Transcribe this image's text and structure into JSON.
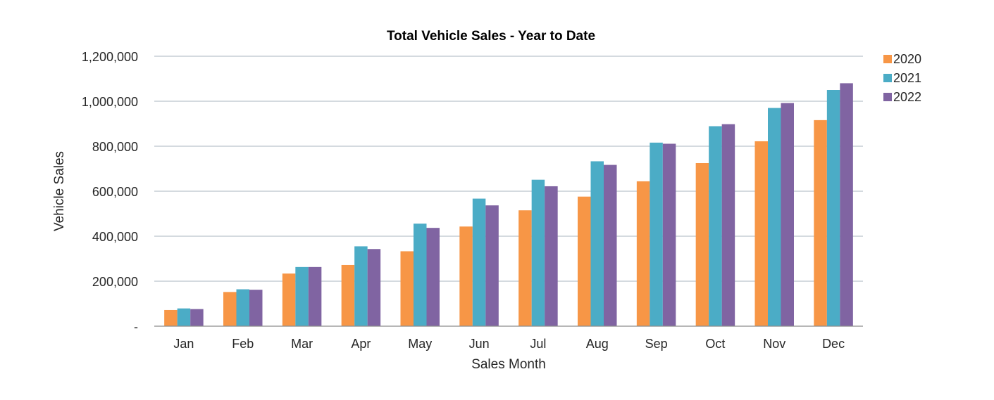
{
  "chart_data": {
    "type": "bar",
    "title": "Total Vehicle Sales - Year to Date",
    "xlabel": "Sales Month",
    "ylabel": "Vehicle Sales",
    "categories": [
      "Jan",
      "Feb",
      "Mar",
      "Apr",
      "May",
      "Jun",
      "Jul",
      "Aug",
      "Sep",
      "Oct",
      "Nov",
      "Dec"
    ],
    "series": [
      {
        "name": "2020",
        "color": "#f79646",
        "values": [
          72000,
          152000,
          234000,
          272000,
          333000,
          443000,
          515000,
          576000,
          644000,
          725000,
          822000,
          916000
        ]
      },
      {
        "name": "2021",
        "color": "#4bacc6",
        "values": [
          79000,
          164000,
          263000,
          355000,
          456000,
          567000,
          651000,
          733000,
          816000,
          889000,
          970000,
          1050000
        ]
      },
      {
        "name": "2022",
        "color": "#8064a2",
        "values": [
          76000,
          162000,
          263000,
          343000,
          437000,
          537000,
          622000,
          717000,
          811000,
          898000,
          992000,
          1080000
        ]
      }
    ],
    "ylim": [
      0,
      1200000
    ],
    "yticks": [
      0,
      200000,
      400000,
      600000,
      800000,
      1000000,
      1200000
    ],
    "ytick_labels": [
      "-",
      "200,000",
      "400,000",
      "600,000",
      "800,000",
      "1,000,000",
      "1,200,000"
    ],
    "grid": true,
    "legend_position": "top-right"
  }
}
